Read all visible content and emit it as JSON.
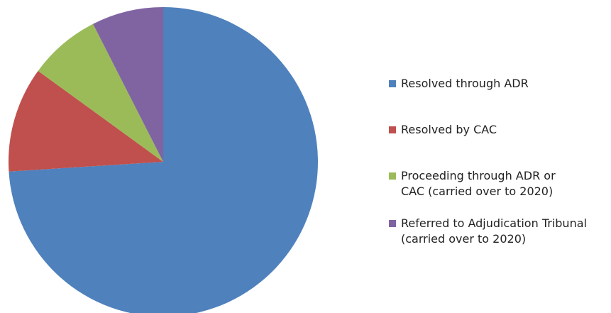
{
  "chart_data": {
    "type": "pie",
    "categories": [
      "Resolved through ADR",
      "Resolved by CAC",
      "Proceeding through ADR or CAC (carried over to 2020)",
      "Referred to Adjudication Tribunal (carried over to 2020)"
    ],
    "values": [
      74,
      11,
      7.5,
      7.5
    ],
    "colors": [
      "#4f81bd",
      "#c0504d",
      "#9bbb59",
      "#8064a2"
    ]
  }
}
